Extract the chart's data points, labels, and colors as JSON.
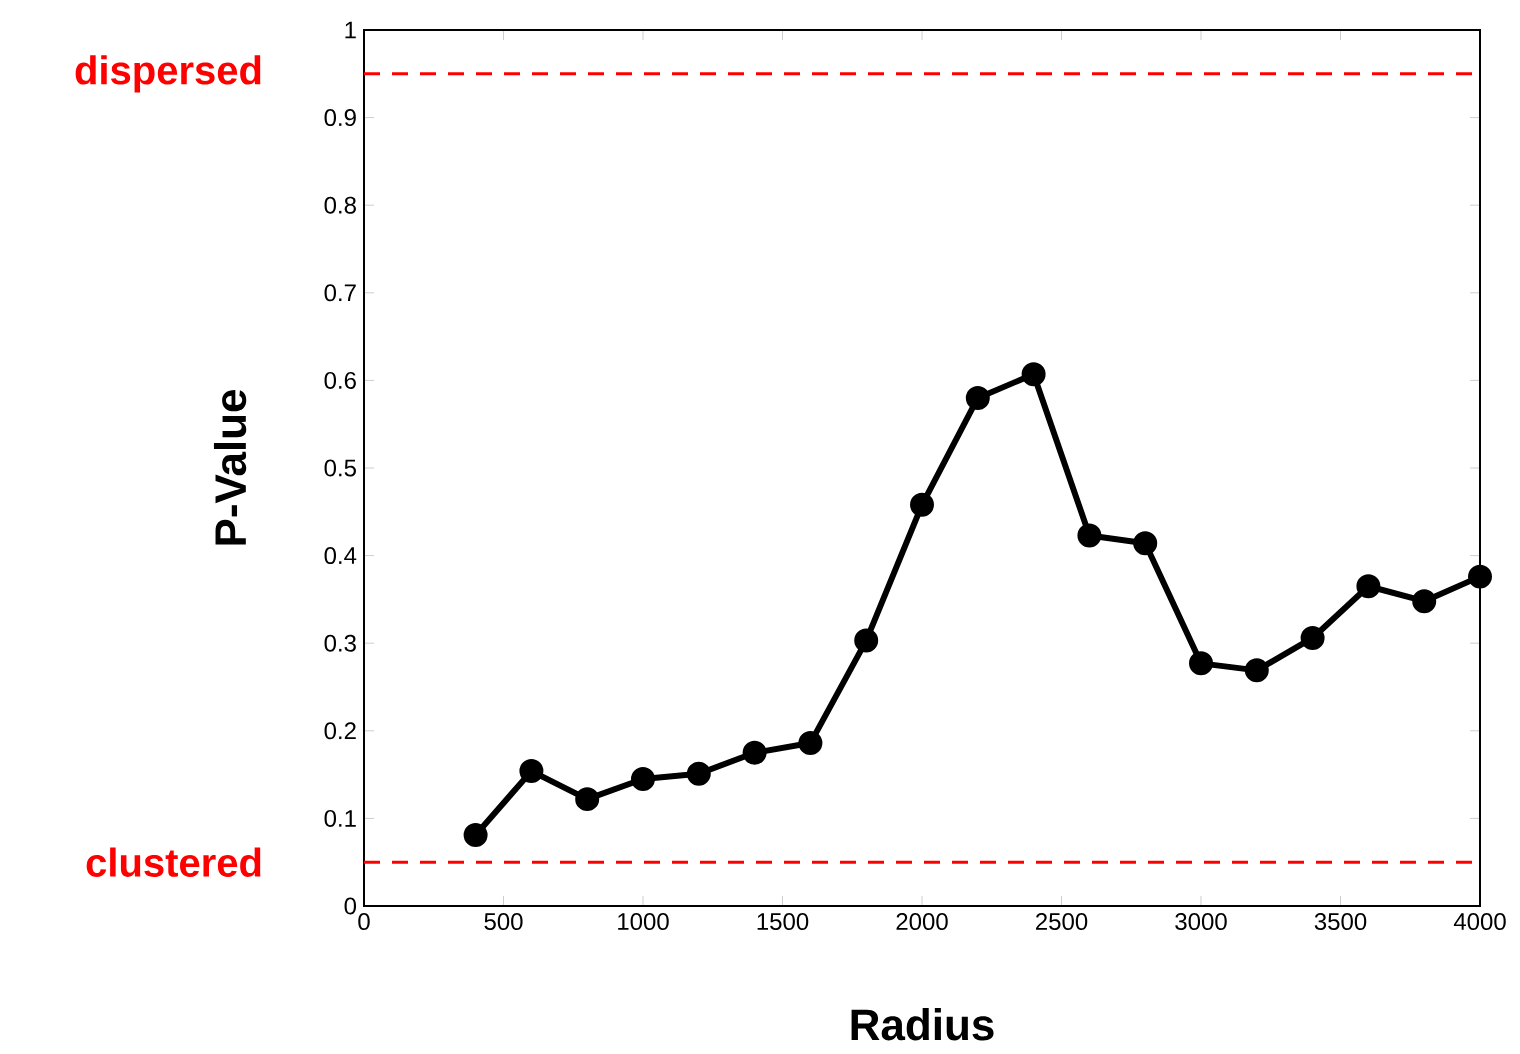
{
  "chart_data": {
    "type": "line",
    "xlabel": "Radius",
    "ylabel": "P-Value",
    "x": [
      400,
      600,
      800,
      1000,
      1200,
      1400,
      1600,
      1800,
      2000,
      2200,
      2400,
      2600,
      2800,
      3000,
      3200,
      3400,
      3600,
      3800,
      4000
    ],
    "series": [
      {
        "color": "#000000",
        "values": [
          0.081,
          0.154,
          0.122,
          0.145,
          0.151,
          0.175,
          0.186,
          0.303,
          0.458,
          0.58,
          0.607,
          0.423,
          0.414,
          0.277,
          0.269,
          0.306,
          0.365,
          0.348,
          0.376
        ]
      }
    ],
    "xlim": [
      0,
      4000
    ],
    "ylim": [
      0,
      1
    ],
    "xticks": [
      0,
      500,
      1000,
      1500,
      2000,
      2500,
      3000,
      3500,
      4000
    ],
    "yticks": [
      0,
      0.1,
      0.2,
      0.3,
      0.4,
      0.5,
      0.6,
      0.7,
      0.8,
      0.9,
      1
    ],
    "ref_lines": [
      {
        "axis": "y",
        "value": 0.95,
        "label": "dispersed",
        "color": "#ff0000",
        "line_style": "dashed"
      },
      {
        "axis": "y",
        "value": 0.05,
        "label": "clustered",
        "color": "#ff0000",
        "line_style": "dashed"
      }
    ],
    "marker": "circle",
    "line_style": "solid"
  }
}
